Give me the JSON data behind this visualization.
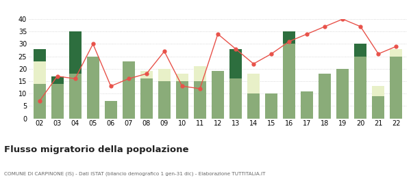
{
  "years": [
    "02",
    "03",
    "04",
    "05",
    "06",
    "07",
    "08",
    "09",
    "10",
    "11",
    "12",
    "13",
    "14",
    "15",
    "16",
    "17",
    "18",
    "19",
    "20",
    "21",
    "22"
  ],
  "iscritti_altri_comuni": [
    14,
    14,
    18,
    25,
    7,
    23,
    16,
    15,
    15,
    15,
    19,
    16,
    10,
    10,
    30,
    11,
    18,
    20,
    25,
    9,
    25
  ],
  "iscritti_estero": [
    9,
    0,
    0,
    0,
    0,
    0,
    3,
    5,
    3,
    6,
    0,
    0,
    8,
    0,
    0,
    0,
    0,
    0,
    0,
    4,
    3
  ],
  "iscritti_altri": [
    5,
    3,
    17,
    0,
    0,
    0,
    0,
    0,
    0,
    0,
    0,
    12,
    0,
    0,
    5,
    0,
    0,
    0,
    5,
    0,
    0
  ],
  "cancellati": [
    7,
    17,
    16,
    30,
    13,
    16,
    18,
    27,
    13,
    12,
    34,
    28,
    22,
    26,
    31,
    34,
    37,
    40,
    37,
    26,
    29
  ],
  "color_altri_comuni": "#8aac79",
  "color_estero": "#e8f0c8",
  "color_altri": "#2d6e3e",
  "color_cancellati": "#e8524a",
  "title": "Flusso migratorio della popolazione",
  "subtitle": "COMUNE DI CARPINONE (IS) - Dati ISTAT (bilancio demografico 1 gen-31 dic) - Elaborazione TUTTITALIA.IT",
  "ylim": [
    0,
    40
  ],
  "yticks": [
    0,
    5,
    10,
    15,
    20,
    25,
    30,
    35,
    40
  ],
  "background_color": "#ffffff",
  "grid_color": "#cccccc"
}
